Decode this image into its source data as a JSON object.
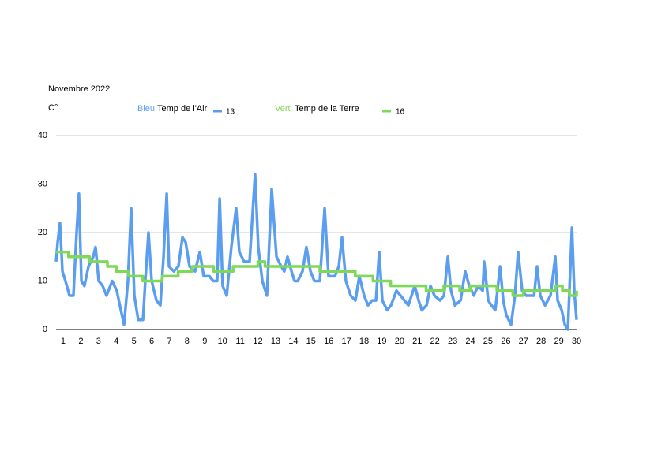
{
  "chart_data": {
    "type": "line",
    "title": "Novembre 2022",
    "y_label": "C°",
    "xlim": [
      0.6,
      30
    ],
    "xticks": [
      1,
      2,
      3,
      4,
      5,
      6,
      7,
      8,
      9,
      10,
      11,
      12,
      13,
      14,
      15,
      16,
      17,
      18,
      19,
      20,
      21,
      22,
      23,
      24,
      25,
      26,
      27,
      28,
      29,
      30
    ],
    "ylim": [
      0,
      40
    ],
    "yticks": [
      0,
      10,
      20,
      30,
      40
    ],
    "grid": true,
    "series": [
      {
        "name": "Temp de l'Air",
        "color_word": "Bleu",
        "legend_value": 13,
        "color": "#5b9ef0",
        "step": false,
        "x": [
          0.6,
          0.69,
          0.82,
          0.96,
          1.13,
          1.36,
          1.58,
          1.76,
          1.89,
          2.03,
          2.2,
          2.43,
          2.7,
          2.83,
          3.01,
          3.23,
          3.45,
          3.77,
          4.03,
          4.26,
          4.44,
          4.66,
          4.84,
          5.02,
          5.24,
          5.51,
          5.64,
          5.82,
          6.0,
          6.27,
          6.49,
          6.67,
          6.85,
          6.98,
          7.25,
          7.51,
          7.74,
          7.92,
          8.14,
          8.45,
          8.72,
          8.94,
          9.26,
          9.48,
          9.7,
          9.84,
          10.01,
          10.24,
          10.5,
          10.77,
          10.95,
          11.22,
          11.53,
          11.84,
          12.02,
          12.25,
          12.51,
          12.78,
          13.05,
          13.32,
          13.49,
          13.67,
          13.9,
          14.07,
          14.25,
          14.52,
          14.74,
          14.97,
          15.19,
          15.5,
          15.77,
          15.99,
          16.35,
          16.57,
          16.75,
          16.97,
          17.24,
          17.51,
          17.73,
          18.0,
          18.22,
          18.45,
          18.67,
          18.85,
          19.03,
          19.3,
          19.52,
          19.83,
          20.06,
          20.28,
          20.5,
          20.68,
          20.86,
          21.08,
          21.26,
          21.53,
          21.75,
          21.97,
          22.29,
          22.51,
          22.73,
          22.91,
          23.13,
          23.45,
          23.71,
          23.94,
          24.2,
          24.43,
          24.7,
          24.78,
          25.01,
          25.19,
          25.41,
          25.68,
          25.86,
          26.03,
          26.3,
          26.52,
          26.7,
          26.93,
          27.15,
          27.33,
          27.6,
          27.77,
          27.95,
          28.22,
          28.53,
          28.8,
          28.93,
          29.16,
          29.34,
          29.51,
          29.74,
          29.87,
          30
        ],
        "values": [
          14,
          18,
          22,
          12,
          10,
          7,
          7,
          20,
          28,
          10,
          9,
          13,
          15,
          17,
          10,
          9,
          7,
          10,
          8,
          4,
          1,
          10,
          25,
          7,
          2,
          2,
          10,
          20,
          10,
          6,
          5,
          15,
          28,
          13,
          12,
          13,
          19,
          18,
          13,
          12,
          16,
          11,
          11,
          10,
          10,
          27,
          9,
          7,
          17,
          25,
          16,
          14,
          14,
          32,
          17,
          10,
          7,
          29,
          15,
          13,
          12,
          15,
          12,
          10,
          10,
          12,
          17,
          12,
          10,
          10,
          25,
          11,
          11,
          13,
          19,
          10,
          7,
          6,
          11,
          7,
          5,
          6,
          6,
          16,
          6,
          4,
          5,
          8,
          7,
          6,
          5,
          7,
          9,
          6,
          4,
          5,
          9,
          7,
          6,
          7,
          15,
          8,
          5,
          6,
          12,
          9,
          7,
          9,
          8,
          14,
          6,
          5,
          4,
          13,
          6,
          3,
          1,
          7,
          16,
          8,
          7,
          7,
          7,
          13,
          7,
          5,
          7,
          15,
          6,
          4,
          1,
          0,
          21,
          8,
          2
        ]
      },
      {
        "name": "Temp de la Terre",
        "color_word": "Vert",
        "legend_value": 16,
        "color": "#7ed957",
        "step": true,
        "x": [
          0.6,
          1.3,
          2.5,
          3.5,
          4.0,
          4.7,
          5.5,
          6.6,
          7.5,
          8.3,
          9.5,
          10.6,
          12.0,
          12.4,
          15.5,
          16.7,
          17.5,
          18.5,
          19.5,
          21.5,
          22.5,
          23.4,
          24.0,
          25.5,
          26.4,
          27.0,
          28.8,
          29.2,
          29.6,
          30
        ],
        "values": [
          16,
          15,
          14,
          13,
          12,
          11,
          10,
          11,
          12,
          13,
          12,
          13,
          14,
          13,
          12,
          12,
          11,
          10,
          9,
          8,
          9,
          8,
          9,
          8,
          7,
          8,
          9,
          8,
          7,
          8
        ]
      }
    ]
  }
}
